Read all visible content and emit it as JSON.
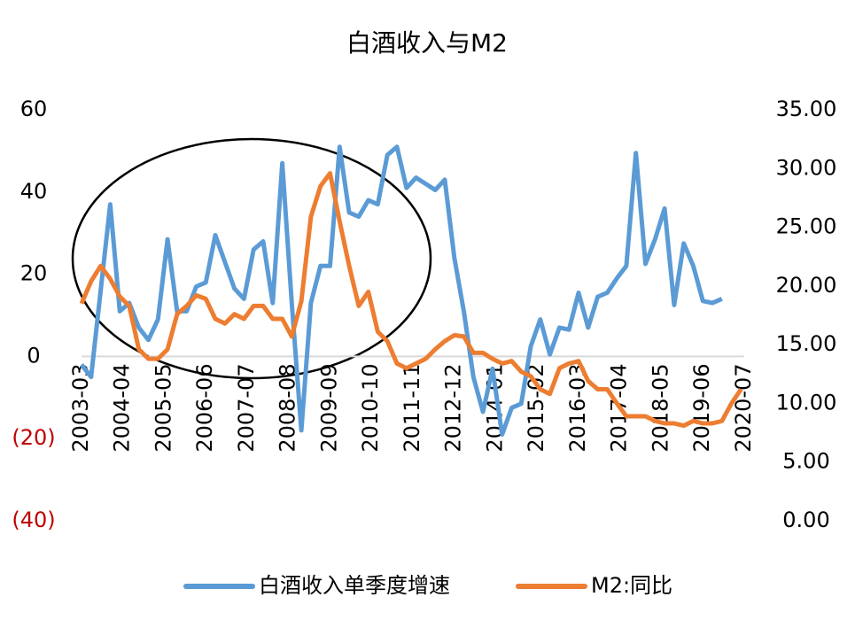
{
  "chart_data": {
    "type": "line",
    "title": "白酒收入与M2",
    "xlim": [
      "2003-03",
      "2020-07"
    ],
    "xticks": [
      "2003-03",
      "2004-04",
      "2005-05",
      "2006-06",
      "2007-07",
      "2008-08",
      "2009-09",
      "2010-10",
      "2011-11",
      "2012-12",
      "2014-01",
      "2015-02",
      "2016-03",
      "2017-04",
      "2018-05",
      "2019-06",
      "2020-07"
    ],
    "ylim": [
      -40,
      60
    ],
    "yticks": [
      {
        "value": -40,
        "label": "(40)"
      },
      {
        "value": -20,
        "label": "(20)"
      },
      0,
      20,
      40,
      60
    ],
    "y2lim": [
      0,
      35
    ],
    "y2ticks": [
      {
        "value": 0,
        "label": "0.00"
      },
      {
        "value": 5,
        "label": "5.00"
      },
      {
        "value": 10,
        "label": "10.00"
      },
      {
        "value": 15,
        "label": "15.00"
      },
      {
        "value": 20,
        "label": "20.00"
      },
      {
        "value": 25,
        "label": "25.00"
      },
      {
        "value": 30,
        "label": "30.00"
      },
      {
        "value": 35,
        "label": "35.00"
      }
    ],
    "legend": "bottom",
    "series": [
      {
        "name": "白酒收入单季度增速",
        "color": "#5b9bd5",
        "x": [
          "2003-03",
          "2003-06",
          "2003-09",
          "2003-12",
          "2004-03",
          "2004-06",
          "2004-09",
          "2004-12",
          "2005-03",
          "2005-06",
          "2005-09",
          "2005-12",
          "2006-03",
          "2006-06",
          "2006-09",
          "2006-12",
          "2007-03",
          "2007-06",
          "2007-09",
          "2007-12",
          "2008-03",
          "2008-06",
          "2008-09",
          "2008-12",
          "2009-03",
          "2009-06",
          "2009-09",
          "2009-12",
          "2010-03",
          "2010-06",
          "2010-09",
          "2010-12",
          "2011-03",
          "2011-06",
          "2011-09",
          "2011-12",
          "2012-03",
          "2012-06",
          "2012-09",
          "2012-12",
          "2013-03",
          "2013-06",
          "2013-09",
          "2013-12",
          "2014-03",
          "2014-06",
          "2014-09",
          "2014-12",
          "2015-03",
          "2015-06",
          "2015-09",
          "2015-12",
          "2016-03",
          "2016-06",
          "2016-09",
          "2016-12",
          "2017-03",
          "2017-06",
          "2017-09",
          "2017-12",
          "2018-03",
          "2018-06",
          "2018-09",
          "2018-12",
          "2019-03",
          "2019-06",
          "2019-09",
          "2019-12"
        ],
        "values": [
          -2,
          -5,
          16,
          37,
          11,
          13,
          7,
          4,
          9,
          28.5,
          11,
          11,
          17,
          18,
          29.5,
          23,
          16.5,
          14,
          26,
          28,
          13,
          47,
          13,
          -18,
          13,
          22,
          22,
          51,
          35,
          34,
          38,
          37,
          49,
          51,
          41,
          43.5,
          42,
          40.5,
          43,
          24,
          11,
          -5,
          -13.5,
          -3,
          -19,
          -12.5,
          -11.5,
          2.5,
          9,
          0.5,
          7,
          6.5,
          15.5,
          7,
          14.5,
          15.5,
          19,
          22,
          49.5,
          22.5,
          28.5,
          36,
          12.5,
          27.5,
          22,
          13.5,
          13,
          14
        ]
      },
      {
        "name": "M2:同比",
        "color": "#ed7d31",
        "axis": "y2",
        "x": [
          "2003-03",
          "2003-06",
          "2003-09",
          "2003-12",
          "2004-03",
          "2004-06",
          "2004-09",
          "2004-12",
          "2005-03",
          "2005-06",
          "2005-09",
          "2005-12",
          "2006-03",
          "2006-06",
          "2006-09",
          "2006-12",
          "2007-03",
          "2007-06",
          "2007-09",
          "2007-12",
          "2008-03",
          "2008-06",
          "2008-09",
          "2008-12",
          "2009-03",
          "2009-06",
          "2009-09",
          "2009-12",
          "2010-03",
          "2010-06",
          "2010-09",
          "2010-12",
          "2011-03",
          "2011-06",
          "2011-09",
          "2011-12",
          "2012-03",
          "2012-06",
          "2012-09",
          "2012-12",
          "2013-03",
          "2013-06",
          "2013-09",
          "2013-12",
          "2014-03",
          "2014-06",
          "2014-09",
          "2014-12",
          "2015-03",
          "2015-06",
          "2015-09",
          "2015-12",
          "2016-03",
          "2016-06",
          "2016-09",
          "2016-12",
          "2017-03",
          "2017-06",
          "2017-09",
          "2017-12",
          "2018-03",
          "2018-06",
          "2018-09",
          "2018-12",
          "2019-03",
          "2019-06",
          "2019-09",
          "2019-12",
          "2020-03",
          "2020-06"
        ],
        "values": [
          18.5,
          20.4,
          21.7,
          20.6,
          19.1,
          18.3,
          14.6,
          13.8,
          13.8,
          14.6,
          17.6,
          18.3,
          19.2,
          18.9,
          17.2,
          16.8,
          17.6,
          17.2,
          18.3,
          18.3,
          17.2,
          17.2,
          15.7,
          18.7,
          25.9,
          28.5,
          29.6,
          25.5,
          21.7,
          18.3,
          19.5,
          16.1,
          15.3,
          13.4,
          13.0,
          13.4,
          13.8,
          14.6,
          15.3,
          15.8,
          15.7,
          14.3,
          14.3,
          13.8,
          13.4,
          13.6,
          12.7,
          12.3,
          11.2,
          10.8,
          13.0,
          13.4,
          13.6,
          11.9,
          11.2,
          11.2,
          10.0,
          8.9,
          8.9,
          8.9,
          8.5,
          8.3,
          8.3,
          8.1,
          8.5,
          8.3,
          8.3,
          8.5,
          10.0,
          11.2
        ]
      }
    ]
  }
}
